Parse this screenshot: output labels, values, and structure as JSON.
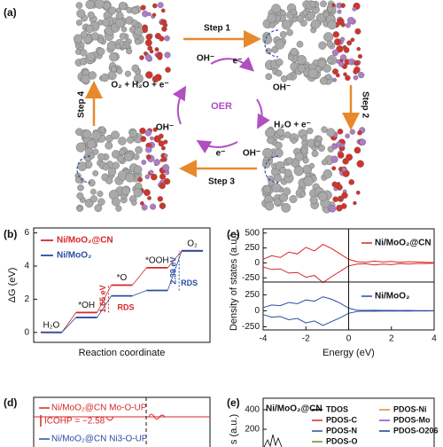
{
  "panel_a": {
    "label": "(a)",
    "steps": [
      "Step 1",
      "Step 2",
      "Step 3",
      "Step 4"
    ],
    "cycle": "OER",
    "species": [
      "OH⁻",
      "e⁻",
      "O₂ + H₂O + e⁻",
      "OH⁻",
      "H₂O + e⁻",
      "OH⁻",
      "e⁻",
      "OH⁻"
    ]
  },
  "chart_data": [
    {
      "type": "step",
      "label": "(b)",
      "ylabel": "ΔG (eV)",
      "xlabel": "Reaction coordinate",
      "categories": [
        "H₂O",
        "*OH",
        "*O",
        "*OOH",
        "O₂"
      ],
      "series": [
        {
          "name": "Ni/MoO₂@CN",
          "color": "#d62728",
          "values": [
            0,
            1.2,
            2.85,
            3.9,
            4.92
          ]
        },
        {
          "name": "Ni/MoO₂",
          "color": "#2b4da0",
          "values": [
            0,
            0.9,
            2.2,
            2.53,
            4.92
          ]
        }
      ],
      "ylim": [
        -0.6,
        6.3
      ],
      "yticks": [
        0,
        2,
        4,
        6
      ],
      "annotations": [
        {
          "text": "1.65 eV",
          "color": "#d62728"
        },
        {
          "text": "RDS",
          "color": "#d62728"
        },
        {
          "text": "2.39 eV",
          "color": "#2b4da0"
        },
        {
          "text": "RDS",
          "color": "#2b4da0"
        }
      ]
    },
    {
      "type": "line",
      "label": "(c)",
      "ylabel": "Density of states (a.u.)",
      "x": [
        -4,
        -3.6,
        -3.2,
        -2.8,
        -2.4,
        -2,
        -1.6,
        -1.2,
        -0.8,
        -0.4,
        0,
        0.4,
        0.8,
        1.2,
        1.6,
        2,
        2.4,
        2.8,
        3.2,
        3.6,
        4
      ],
      "series": [
        {
          "name": "Ni/MoO₂@CN",
          "color": "#d62728",
          "values": [
            60,
            120,
            90,
            180,
            150,
            260,
            200,
            310,
            240,
            150,
            60,
            20,
            10,
            30,
            15,
            25,
            10,
            20,
            15,
            10,
            5
          ]
        },
        {
          "color": "#d62728",
          "values": [
            -70,
            -110,
            -100,
            -170,
            -160,
            -240,
            -210,
            -330,
            -230,
            -140,
            -50,
            -20,
            -15,
            -35,
            -20,
            -30,
            -10,
            -20,
            -10,
            -10,
            -5
          ]
        }
      ],
      "xlim": [
        -4,
        4
      ],
      "ylim": [
        -320,
        570
      ],
      "yticks": [
        500,
        250,
        0,
        -250
      ],
      "vline": 0
    },
    {
      "type": "line",
      "xlabel": "Energy (eV)",
      "x": [
        -4,
        -3.6,
        -3.2,
        -2.8,
        -2.4,
        -2,
        -1.6,
        -1.2,
        -0.8,
        -0.4,
        0,
        0.4,
        0.8,
        1.2,
        1.6,
        2,
        2.4,
        2.8,
        3.2,
        3.6,
        4
      ],
      "series": [
        {
          "name": "Ni/MoO₂",
          "color": "#2b4da0",
          "values": [
            50,
            90,
            80,
            130,
            110,
            170,
            150,
            220,
            180,
            120,
            40,
            10,
            5,
            8,
            5,
            6,
            4,
            5,
            3,
            3,
            2
          ]
        },
        {
          "color": "#2b4da0",
          "values": [
            -60,
            -100,
            -90,
            -140,
            -120,
            -190,
            -160,
            -230,
            -170,
            -110,
            -40,
            -10,
            -5,
            -8,
            -5,
            -6,
            -4,
            -5,
            -3,
            -3,
            -2
          ]
        }
      ],
      "xlim": [
        -4,
        4
      ],
      "ylim": [
        -300,
        450
      ],
      "yticks": [
        250,
        0,
        -250
      ],
      "xticks": [
        -4,
        -2,
        0,
        2,
        4
      ],
      "vline": 0
    },
    {
      "type": "cohp",
      "label": "(d)",
      "legend": [
        {
          "name": "Ni/MoO₂@CN Mo-O-UP",
          "color": "#d62728"
        },
        {
          "name": "Ni/MoO₂@CN Ni3-O-UP",
          "color": "#2b4da0"
        }
      ],
      "annotation": "ICOHP = −2.58"
    },
    {
      "type": "pdos",
      "label": "(e)",
      "title": "Ni/MoO₂@CN",
      "ylabel": "s (a.u.)",
      "ylim": [
        0,
        518
      ],
      "yticks": [
        400,
        200
      ],
      "legend": [
        {
          "name": "TDOS",
          "color": "#000000"
        },
        {
          "name": "PDOS-C",
          "color": "#d62728"
        },
        {
          "name": "PDOS-N",
          "color": "#2b4da0"
        },
        {
          "name": "PDOS-O",
          "color": "#6b8e23"
        },
        {
          "name": "PDOS-Ni",
          "color": "#e8892b"
        },
        {
          "name": "PDOS-Mo",
          "color": "#a040b0"
        },
        {
          "name": "PDOS-O206",
          "color": "#1f3a80"
        }
      ]
    }
  ]
}
